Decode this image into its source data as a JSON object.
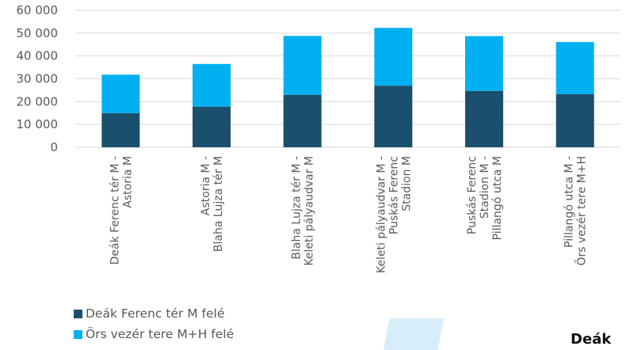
{
  "chart_data": {
    "type": "bar",
    "stacked": true,
    "categories": [
      [
        "Deák Ferenc tér M -",
        "Astoria M"
      ],
      [
        "Astoria M -",
        "Blaha Lujza tér M"
      ],
      [
        "Blaha Lujza tér M -",
        "Keleti pályaudvar M"
      ],
      [
        "Keleti pályaudvar M -",
        "Puskás Ferenc",
        "Stadion M"
      ],
      [
        "Puskás Ferenc",
        "Stadion M -",
        "Pillangó utca M"
      ],
      [
        "Pillangó utca M -",
        "Örs vezér tere M+H"
      ]
    ],
    "series": [
      {
        "name": "Deák Ferenc tér M felé",
        "color": "#1b4f6e",
        "values": [
          15000,
          17800,
          23000,
          27000,
          24700,
          23300
        ]
      },
      {
        "name": "Örs vezér tere M+H felé",
        "color": "#00b0f0",
        "values": [
          16800,
          18700,
          25800,
          25300,
          24000,
          22800
        ]
      }
    ],
    "ylim": [
      0,
      60000
    ],
    "yticks": [
      0,
      10000,
      20000,
      30000,
      40000,
      50000,
      60000
    ],
    "ytick_labels": [
      "0",
      "10 000",
      "20 000",
      "30 000",
      "40 000",
      "50 000",
      "60 000"
    ],
    "grid": true,
    "legend_position": "bottom-left"
  },
  "overflow_text": "Deák"
}
